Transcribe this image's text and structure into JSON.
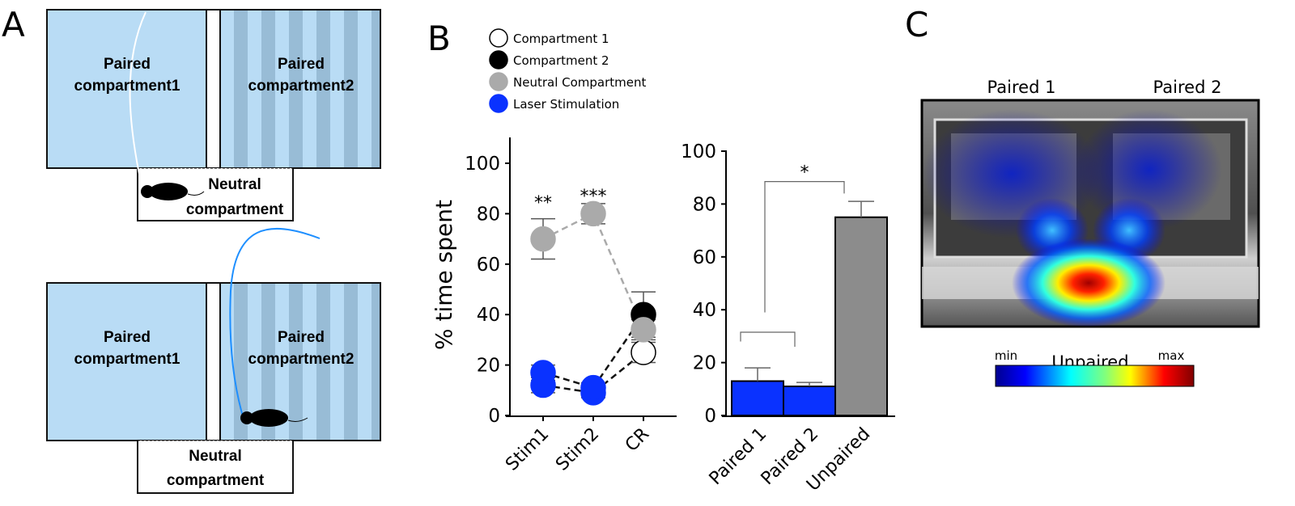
{
  "panels": {
    "a": "A",
    "b": "B",
    "c": "C"
  },
  "schematic": {
    "paired1": [
      "Paired",
      "compartment1"
    ],
    "paired2": [
      "Paired",
      "compartment2"
    ],
    "neutral": [
      "Neutral",
      "compartment"
    ]
  },
  "legend": [
    {
      "label": "Compartment 1",
      "color": "#ffffff"
    },
    {
      "label": "Compartment 2",
      "color": "#000000"
    },
    {
      "label": "Neutral Compartment",
      "color": "#aaaaaa"
    },
    {
      "label": "Laser Stimulation",
      "color": "#0a32ff"
    }
  ],
  "chart_data": [
    {
      "type": "line",
      "ylabel": "% time spent",
      "ylim": [
        0,
        110
      ],
      "yticks": [
        "0",
        "20",
        "40",
        "60",
        "80",
        "100"
      ],
      "categories": [
        "Stim1",
        "Stim2",
        "CR"
      ],
      "series": [
        {
          "name": "Compartment 1",
          "values": [
            12,
            9,
            25
          ],
          "errors": [
            3,
            2,
            4
          ],
          "laser": [
            true,
            true,
            false
          ]
        },
        {
          "name": "Compartment 2",
          "values": [
            17,
            11,
            40
          ],
          "errors": [
            3,
            2,
            9
          ],
          "laser": [
            true,
            true,
            false
          ]
        },
        {
          "name": "Neutral Compartment",
          "values": [
            70,
            80,
            34
          ],
          "errors": [
            8,
            4,
            4
          ],
          "laser": [
            false,
            false,
            false
          ]
        }
      ],
      "annotations": [
        {
          "category": "Stim1",
          "text": "**"
        },
        {
          "category": "Stim2",
          "text": "***"
        }
      ]
    },
    {
      "type": "bar",
      "ylim": [
        0,
        100
      ],
      "yticks": [
        "0",
        "20",
        "40",
        "60",
        "80",
        "100"
      ],
      "categories": [
        "Paired 1",
        "Paired 2",
        "Unpaired"
      ],
      "values": [
        13,
        11,
        75
      ],
      "errors": [
        5,
        1.5,
        6
      ],
      "colors": [
        "#0a32ff",
        "#0a32ff",
        "#8c8c8c"
      ],
      "significance": "*"
    }
  ],
  "heatmap": {
    "labels": {
      "paired1": "Paired 1",
      "paired2": "Paired 2",
      "unpaired": "Unpaired"
    },
    "colorbar": {
      "min": "min",
      "max": "max"
    }
  }
}
